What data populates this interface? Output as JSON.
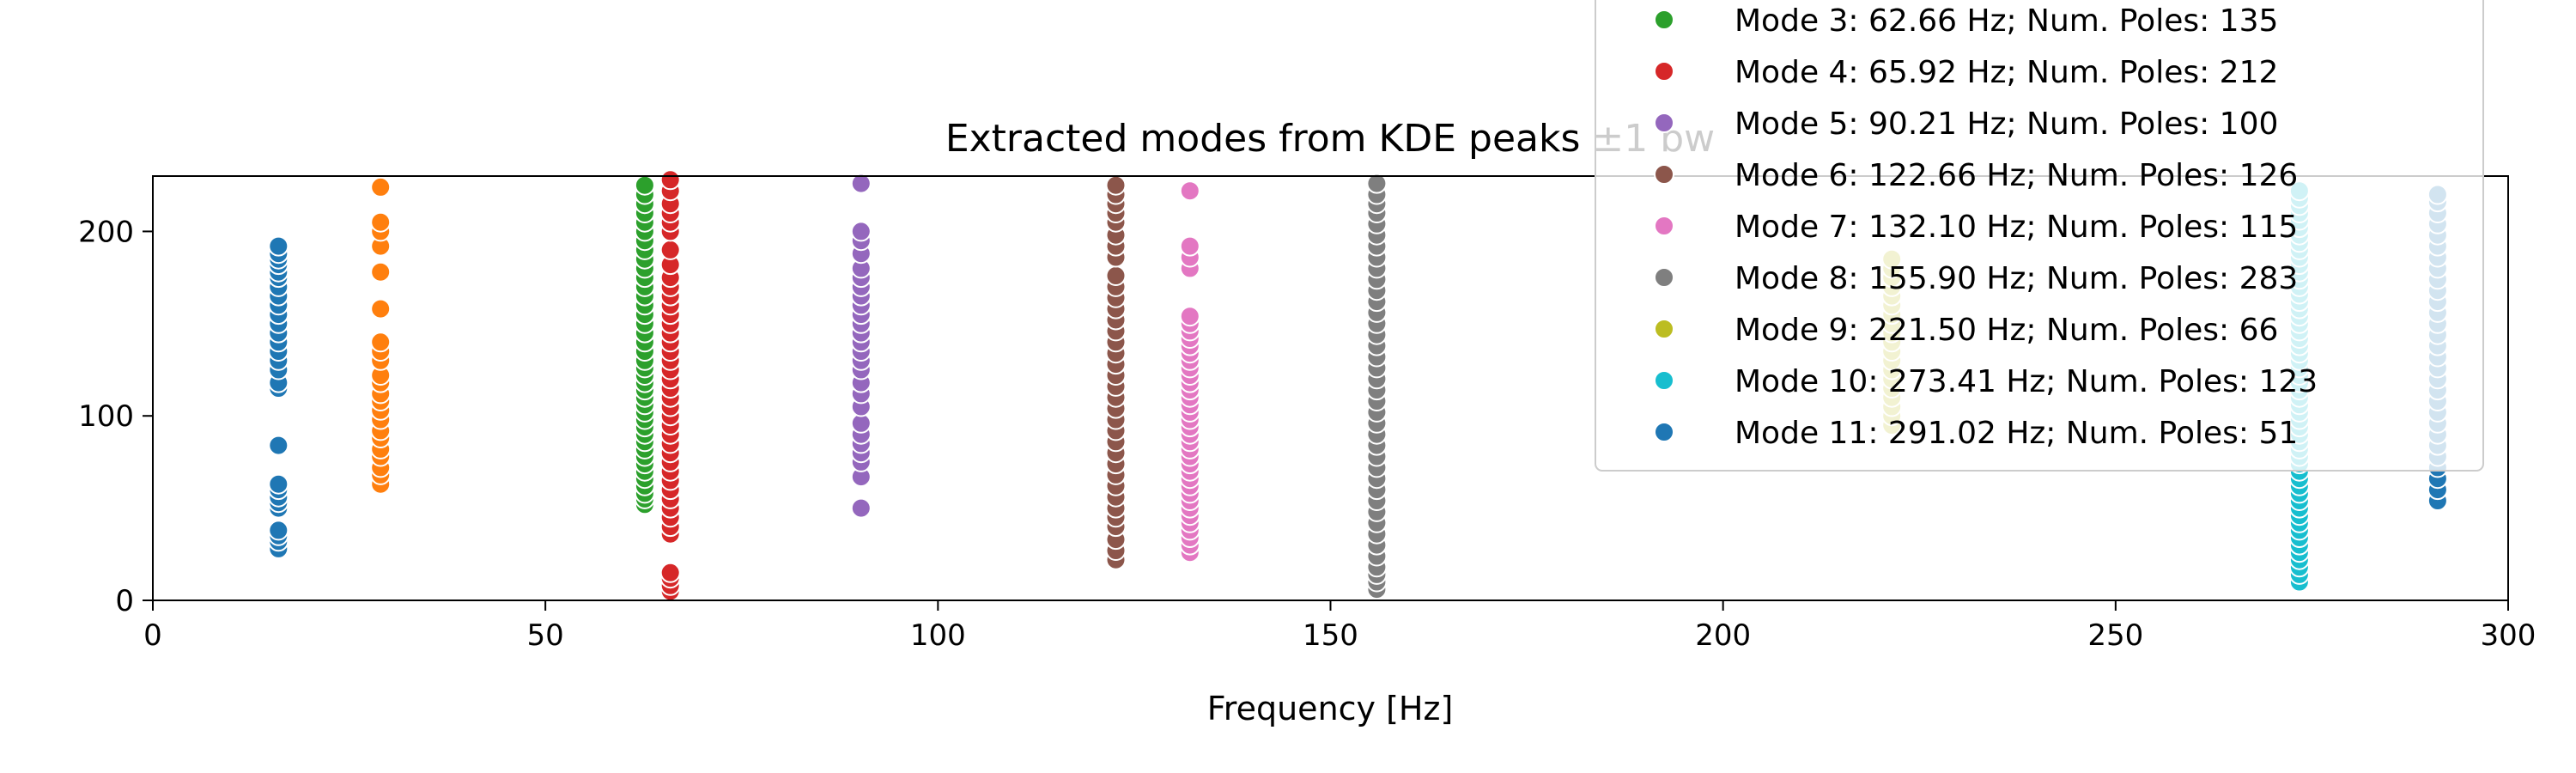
{
  "chart_data": {
    "type": "scatter",
    "title": "Extracted modes from KDE peaks ±1 bw",
    "xlabel": "Frequency [Hz]",
    "ylabel": "",
    "xlim": [
      0,
      300
    ],
    "ylim": [
      0,
      230
    ],
    "xticks": [
      0,
      50,
      100,
      150,
      200,
      250,
      300
    ],
    "yticks": [
      0,
      100,
      200
    ],
    "grid": false,
    "legend_position": "top-right",
    "series": [
      {
        "name": "",
        "x": 16.0,
        "color": "#1f77b4",
        "y": [
          28,
          32,
          35,
          38,
          50,
          53,
          56,
          60,
          63,
          84,
          115,
          118,
          125,
          130,
          135,
          140,
          145,
          150,
          155,
          160,
          165,
          170,
          175,
          178,
          182,
          185,
          188,
          192
        ]
      },
      {
        "name": "",
        "x": 29.0,
        "color": "#ff7f0e",
        "y": [
          63,
          68,
          72,
          78,
          82,
          88,
          92,
          98,
          103,
          108,
          112,
          118,
          122,
          130,
          135,
          140,
          158,
          178,
          192,
          200,
          205,
          224
        ]
      },
      {
        "name": "Mode 3: 62.66 Hz; Num. Poles: 135",
        "x": 62.66,
        "color": "#2ca02c",
        "y": [
          52,
          55,
          58,
          62,
          66,
          70,
          74,
          78,
          82,
          86,
          90,
          94,
          98,
          102,
          106,
          110,
          114,
          118,
          122,
          126,
          130,
          135,
          140,
          145,
          150,
          155,
          160,
          165,
          170,
          175,
          180,
          185,
          190,
          195,
          200,
          205,
          210,
          215,
          220,
          225
        ]
      },
      {
        "name": "Mode 4: 65.92 Hz; Num. Poles: 212",
        "x": 65.92,
        "color": "#d62728",
        "y": [
          5,
          8,
          12,
          15,
          36,
          40,
          45,
          50,
          55,
          60,
          65,
          70,
          75,
          80,
          85,
          90,
          95,
          100,
          105,
          110,
          115,
          120,
          125,
          130,
          135,
          140,
          145,
          150,
          155,
          160,
          165,
          170,
          175,
          182,
          190,
          200,
          205,
          210,
          215,
          222,
          228
        ]
      },
      {
        "name": "Mode 5: 90.21 Hz; Num. Poles: 100",
        "x": 90.21,
        "color": "#9467bd",
        "y": [
          50,
          67,
          75,
          80,
          85,
          90,
          96,
          105,
          112,
          118,
          125,
          130,
          135,
          140,
          145,
          150,
          155,
          160,
          165,
          170,
          175,
          180,
          188,
          195,
          200,
          226
        ]
      },
      {
        "name": "Mode 6: 122.66 Hz; Num. Poles: 126",
        "x": 122.66,
        "color": "#8c564b",
        "y": [
          22,
          27,
          33,
          40,
          45,
          50,
          56,
          62,
          68,
          74,
          80,
          86,
          92,
          98,
          104,
          110,
          116,
          122,
          128,
          134,
          140,
          146,
          152,
          158,
          164,
          170,
          176,
          186,
          192,
          198,
          205,
          210,
          215,
          220,
          225
        ]
      },
      {
        "name": "Mode 7: 132.10 Hz; Num. Poles: 115",
        "x": 132.1,
        "color": "#e377c2",
        "y": [
          26,
          30,
          34,
          38,
          42,
          46,
          50,
          54,
          58,
          62,
          66,
          70,
          74,
          78,
          82,
          86,
          90,
          94,
          98,
          102,
          106,
          110,
          114,
          118,
          122,
          126,
          130,
          134,
          138,
          142,
          146,
          150,
          154,
          180,
          186,
          192,
          222
        ]
      },
      {
        "name": "Mode 8: 155.90 Hz; Num. Poles: 283",
        "x": 155.9,
        "color": "#7f7f7f",
        "y": [
          6,
          10,
          14,
          18,
          24,
          30,
          36,
          42,
          48,
          54,
          60,
          66,
          72,
          78,
          84,
          90,
          96,
          102,
          108,
          114,
          120,
          126,
          132,
          138,
          144,
          150,
          156,
          162,
          168,
          174,
          180,
          186,
          192,
          198,
          204,
          210,
          215,
          220,
          226
        ]
      },
      {
        "name": "Mode 9: 221.50 Hz; Num. Poles: 66",
        "x": 221.5,
        "color": "#bcbd22",
        "y": [
          95,
          100,
          105,
          110,
          115,
          120,
          125,
          130,
          135,
          140,
          145,
          150,
          155,
          160,
          165,
          170,
          175,
          180,
          185
        ]
      },
      {
        "name": "Mode 10: 273.41 Hz; Num. Poles: 123",
        "x": 273.41,
        "color": "#17becf",
        "y": [
          10,
          14,
          18,
          22,
          26,
          30,
          34,
          38,
          42,
          46,
          50,
          54,
          58,
          62,
          66,
          70,
          74,
          78,
          82,
          86,
          90,
          94,
          98,
          102,
          106,
          110,
          114,
          118,
          122,
          126,
          130,
          134,
          138,
          142,
          146,
          150,
          154,
          158,
          162,
          166,
          170,
          174,
          178,
          182,
          186,
          190,
          194,
          198,
          202,
          206,
          210,
          214,
          218,
          222
        ]
      },
      {
        "name": "Mode 11: 291.02 Hz; Num. Poles: 51",
        "x": 291.02,
        "color": "#1f77b4",
        "y": [
          54,
          60,
          66,
          72,
          78,
          84,
          90,
          96,
          102,
          108,
          114,
          120,
          126,
          132,
          138,
          144,
          150,
          156,
          162,
          168,
          174,
          180,
          186,
          192,
          198,
          204,
          210,
          216,
          220
        ]
      }
    ]
  }
}
